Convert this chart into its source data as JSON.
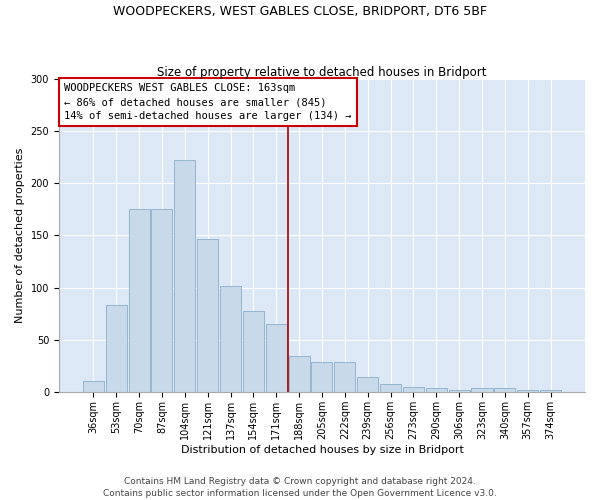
{
  "title": "WOODPECKERS, WEST GABLES CLOSE, BRIDPORT, DT6 5BF",
  "subtitle": "Size of property relative to detached houses in Bridport",
  "xlabel": "Distribution of detached houses by size in Bridport",
  "ylabel": "Number of detached properties",
  "categories": [
    "36sqm",
    "53sqm",
    "70sqm",
    "87sqm",
    "104sqm",
    "121sqm",
    "137sqm",
    "154sqm",
    "171sqm",
    "188sqm",
    "205sqm",
    "222sqm",
    "239sqm",
    "256sqm",
    "273sqm",
    "290sqm",
    "306sqm",
    "323sqm",
    "340sqm",
    "357sqm",
    "374sqm"
  ],
  "values": [
    11,
    83,
    175,
    175,
    222,
    147,
    102,
    78,
    65,
    35,
    29,
    29,
    15,
    8,
    5,
    4,
    2,
    4,
    4,
    2,
    2
  ],
  "bar_color": "#c8daea",
  "bar_edge_color": "#8aaec8",
  "vline_x": 8.5,
  "vline_color": "#aa0000",
  "annotation_text": "WOODPECKERS WEST GABLES CLOSE: 163sqm\n← 86% of detached houses are smaller (845)\n14% of semi-detached houses are larger (134) →",
  "annotation_box_facecolor": "#ffffff",
  "annotation_box_edgecolor": "#cc0000",
  "ylim": [
    0,
    300
  ],
  "yticks": [
    0,
    50,
    100,
    150,
    200,
    250,
    300
  ],
  "background_color": "#dce8f5",
  "footer_line1": "Contains HM Land Registry data © Crown copyright and database right 2024.",
  "footer_line2": "Contains public sector information licensed under the Open Government Licence v3.0.",
  "title_fontsize": 9,
  "subtitle_fontsize": 8.5,
  "xlabel_fontsize": 8,
  "ylabel_fontsize": 8,
  "tick_fontsize": 7,
  "annotation_fontsize": 7.5,
  "footer_fontsize": 6.5
}
